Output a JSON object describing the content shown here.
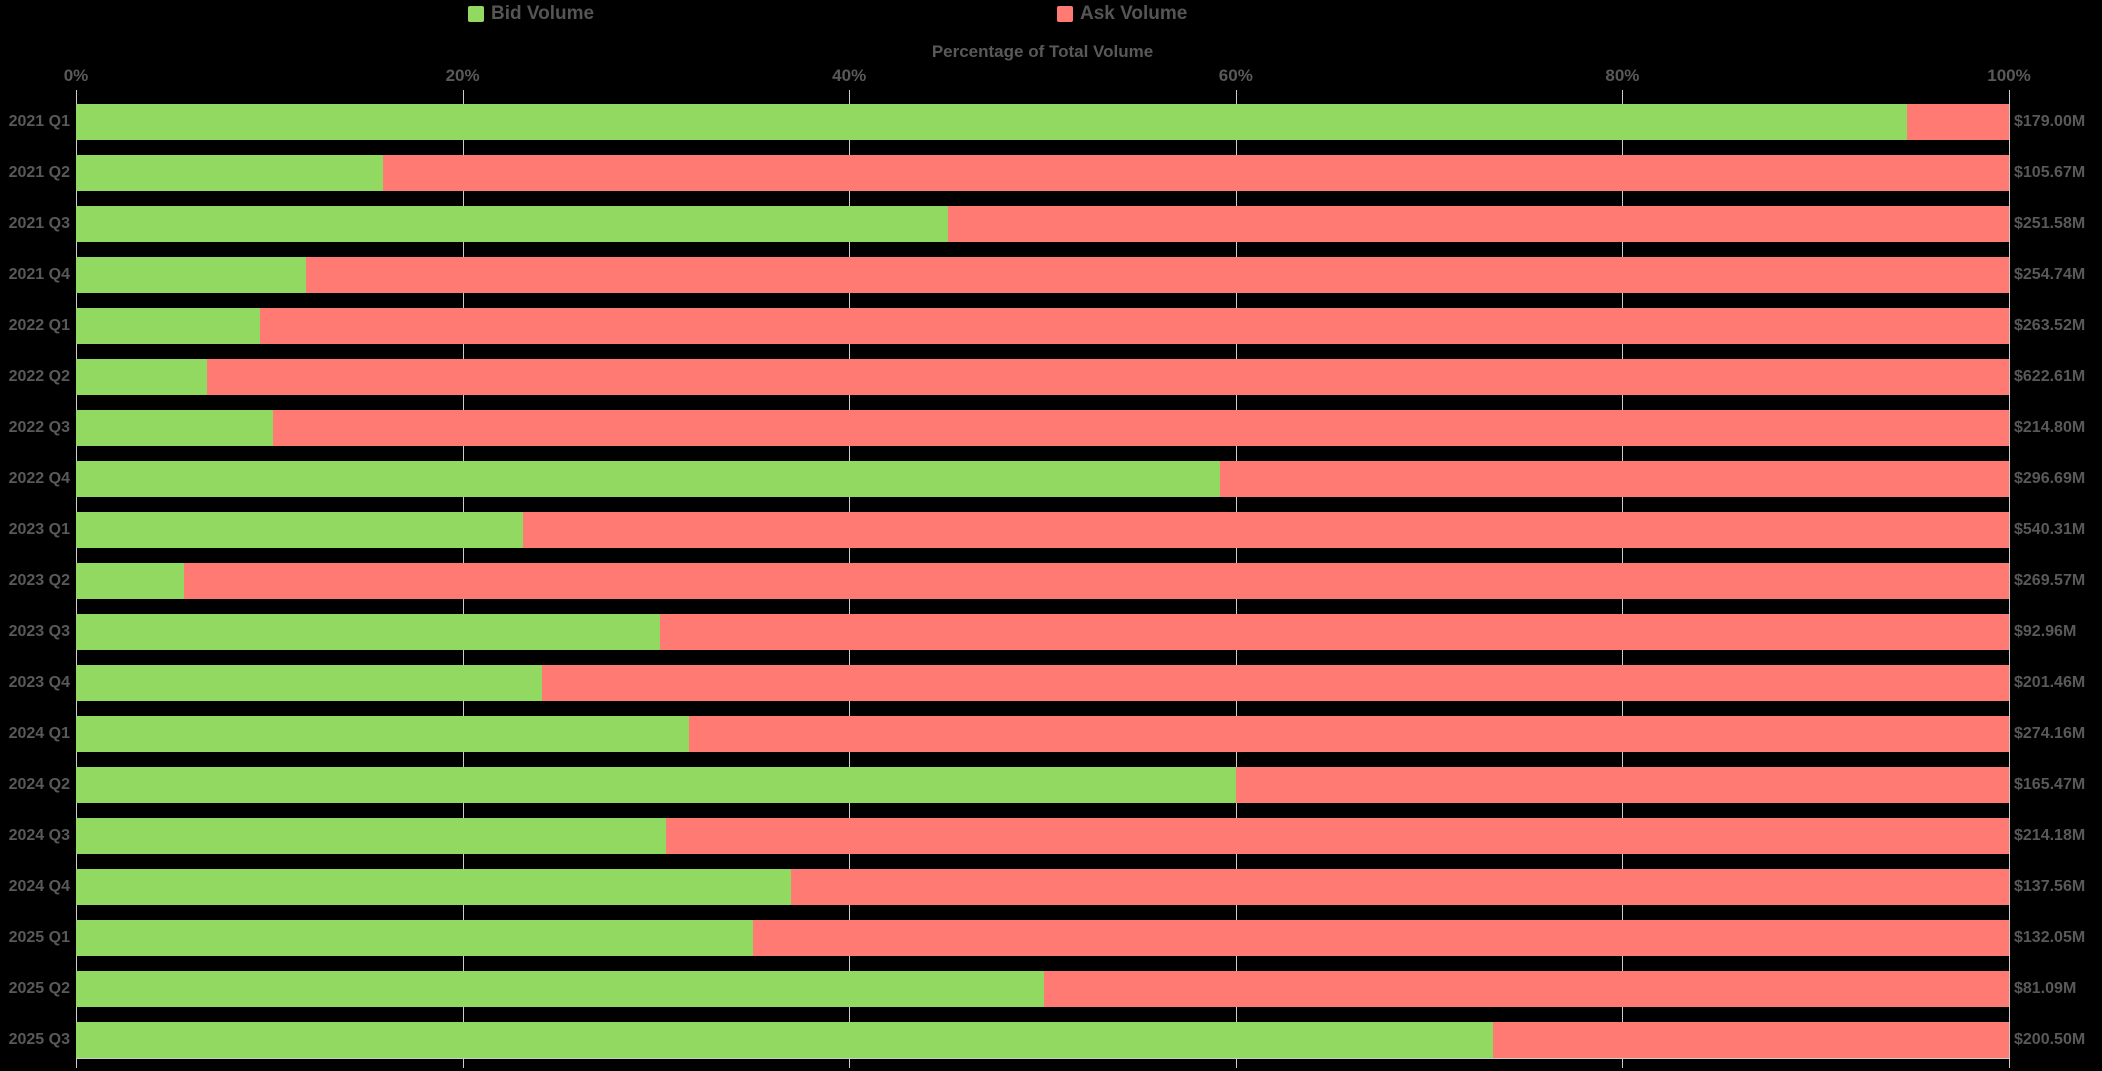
{
  "chart_data": {
    "type": "bar",
    "orientation": "horizontal",
    "stacked": true,
    "title": "Percentage of Total Volume",
    "categories": [
      "2021 Q1",
      "2021 Q2",
      "2021 Q3",
      "2021 Q4",
      "2022 Q1",
      "2022 Q2",
      "2022 Q3",
      "2022 Q4",
      "2023 Q1",
      "2023 Q2",
      "2023 Q3",
      "2023 Q4",
      "2024 Q1",
      "2024 Q2",
      "2024 Q3",
      "2024 Q4",
      "2025 Q1",
      "2025 Q2",
      "2025 Q3"
    ],
    "series": [
      {
        "name": "Bid Volume",
        "color": "#92d962",
        "values_pct": [
          94.7,
          15.9,
          45.1,
          11.9,
          9.5,
          6.8,
          10.2,
          59.2,
          23.1,
          5.6,
          30.2,
          24.1,
          31.7,
          60.0,
          30.5,
          37.0,
          35.0,
          50.1,
          73.3
        ]
      },
      {
        "name": "Ask Volume",
        "color": "#ff7a72",
        "values_pct": [
          5.3,
          84.1,
          54.9,
          88.1,
          90.5,
          93.2,
          89.8,
          40.8,
          76.9,
          94.4,
          69.8,
          75.9,
          68.3,
          40.0,
          69.5,
          63.0,
          65.0,
          49.9,
          26.7
        ]
      }
    ],
    "total_labels": [
      "$179.00M",
      "$105.67M",
      "$251.58M",
      "$254.74M",
      "$263.52M",
      "$622.61M",
      "$214.80M",
      "$296.69M",
      "$540.31M",
      "$269.57M",
      "$92.96M",
      "$201.46M",
      "$274.16M",
      "$165.47M",
      "$214.18M",
      "$137.56M",
      "$132.05M",
      "$81.09M",
      "$200.50M"
    ],
    "x_axis": {
      "ticks": [
        "0%",
        "20%",
        "40%",
        "60%",
        "80%",
        "100%"
      ],
      "tick_values": [
        0,
        20,
        40,
        60,
        80,
        100
      ],
      "range": [
        0,
        100
      ],
      "grid": true
    },
    "legend": [
      {
        "label": "Bid Volume",
        "color": "#92d962"
      },
      {
        "label": "Ask Volume",
        "color": "#ff7a72"
      }
    ],
    "colors": {
      "background": "#000000",
      "grid": "#cccccc",
      "text": "#595959",
      "legend_text": "#555555"
    }
  }
}
